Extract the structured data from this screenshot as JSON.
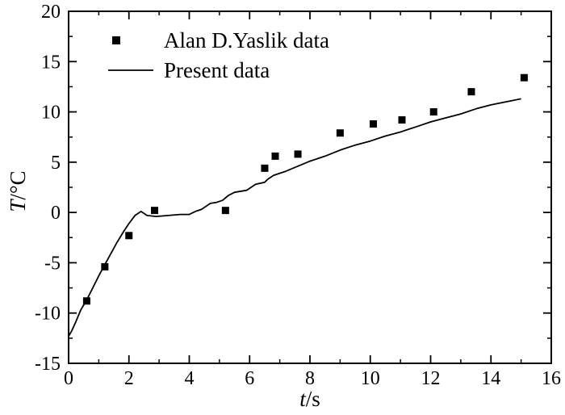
{
  "chart_data": {
    "type": "scatter",
    "title": "",
    "xlabel": {
      "var": "t",
      "unit": "/s"
    },
    "ylabel": {
      "var": "T",
      "unit": "/°C"
    },
    "xlim": [
      0,
      16
    ],
    "ylim": [
      -15,
      20
    ],
    "xticks": [
      0,
      2,
      4,
      6,
      8,
      10,
      12,
      14,
      16
    ],
    "yticks": [
      -15,
      -10,
      -5,
      0,
      5,
      10,
      15,
      20
    ],
    "x_minor_step": 1,
    "y_minor_step": 2.5,
    "grid": false,
    "legend_position": "top-left",
    "series": [
      {
        "name": "Alan D.Yaslik data",
        "type": "scatter",
        "marker": "square",
        "x": [
          0.6,
          1.2,
          2.0,
          2.85,
          5.2,
          6.5,
          6.85,
          7.6,
          9.0,
          10.1,
          11.05,
          12.1,
          13.35,
          15.1
        ],
        "y": [
          -8.8,
          -5.4,
          -2.3,
          0.2,
          0.2,
          4.4,
          5.6,
          5.8,
          7.9,
          8.8,
          9.2,
          10.0,
          12.0,
          13.4
        ]
      },
      {
        "name": "Present data",
        "type": "line",
        "x": [
          0.0,
          0.1,
          0.25,
          0.4,
          0.6,
          0.8,
          1.0,
          1.2,
          1.4,
          1.6,
          1.8,
          2.0,
          2.2,
          2.4,
          2.6,
          2.9,
          3.3,
          3.7,
          4.0,
          4.2,
          4.4,
          4.6,
          4.7,
          4.9,
          5.1,
          5.3,
          5.5,
          5.9,
          6.2,
          6.5,
          6.6,
          6.8,
          7.2,
          7.6,
          8.0,
          8.5,
          9.0,
          9.5,
          10.0,
          10.5,
          11.0,
          11.5,
          12.0,
          12.5,
          13.0,
          13.5,
          14.0,
          14.5,
          15.0
        ],
        "y": [
          -12.3,
          -11.8,
          -10.8,
          -9.7,
          -8.7,
          -7.5,
          -6.3,
          -5.2,
          -4.1,
          -3.0,
          -2.0,
          -1.1,
          -0.3,
          0.1,
          -0.3,
          -0.4,
          -0.3,
          -0.2,
          -0.2,
          0.1,
          0.3,
          0.7,
          0.9,
          1.0,
          1.2,
          1.7,
          2.0,
          2.2,
          2.8,
          3.0,
          3.3,
          3.7,
          4.1,
          4.6,
          5.1,
          5.6,
          6.2,
          6.7,
          7.1,
          7.6,
          8.0,
          8.5,
          9.0,
          9.4,
          9.8,
          10.3,
          10.7,
          11.0,
          11.3
        ]
      }
    ]
  }
}
